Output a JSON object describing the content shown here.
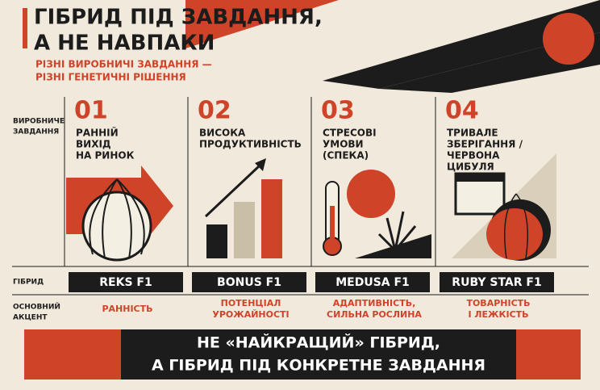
{
  "header": {
    "title": [
      "ГІБРИД ПІД ЗАВДАННЯ,",
      "А НЕ НАВПАКИ"
    ],
    "subtitle": [
      "РІЗНІ ВИРОБНИЧІ ЗАВДАННЯ —",
      "РІЗНІ ГЕНЕТИЧНІ РІШЕННЯ"
    ]
  },
  "row_labels": {
    "task": [
      "ВИРОБНИЧЕ",
      "ЗАВДАННЯ"
    ],
    "hybrid": "ГІБРИД",
    "accent": [
      "ОСНОВНИЙ",
      "АКЦЕНТ"
    ]
  },
  "columns": [
    {
      "number": "01",
      "task": [
        "РАННІЙ",
        "ВИХІД",
        "НА РИНОК"
      ],
      "hybrid": "REKS F1",
      "accent": [
        "РАННІСТЬ"
      ]
    },
    {
      "number": "02",
      "task": [
        "ВИСОКА",
        "ПРОДУКТИВНІСТЬ"
      ],
      "hybrid": "BONUS F1",
      "accent": [
        "ПОТЕНЦІАЛ",
        "УРОЖАЙНОСТІ"
      ]
    },
    {
      "number": "03",
      "task": [
        "СТРЕСОВІ",
        "УМОВИ",
        "(СПЕКА)"
      ],
      "hybrid": "MEDUSA F1",
      "accent": [
        "АДАПТИВНІСТЬ,",
        "СИЛЬНА РОСЛИНА"
      ]
    },
    {
      "number": "04",
      "task": [
        "ТРИВАЛЕ",
        "ЗБЕРІГАННЯ /",
        "ЧЕРВОНА",
        "ЦИБУЛЯ"
      ],
      "hybrid": "RUBY STAR F1",
      "accent": [
        "ТОВАРНІСТЬ",
        "І ЛЕЖКІСТЬ"
      ]
    }
  ],
  "footer": [
    "НЕ «НАЙКРАЩИЙ» ГІБРИД,",
    "А ГІБРИД ПІД КОНКРЕТНЕ ЗАВДАННЯ"
  ]
}
